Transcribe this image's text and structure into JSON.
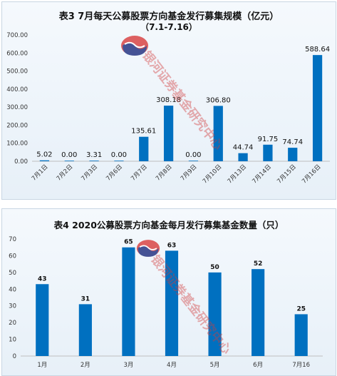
{
  "chart_data": [
    {
      "type": "bar",
      "title": "表3  7月每天公募股票方向基金发行募集规模（亿元）",
      "subtitle": "（7.1-7.16）",
      "categories": [
        "7月1日",
        "7月2日",
        "7月3日",
        "7月6日",
        "7月7日",
        "7月8日",
        "7月9日",
        "7月10日",
        "7月13日",
        "7月14日",
        "7月15日",
        "7月16日"
      ],
      "values": [
        5.02,
        0.0,
        3.31,
        0.0,
        135.61,
        308.18,
        0.0,
        306.8,
        44.74,
        91.75,
        74.74,
        588.64
      ],
      "value_labels": [
        "5.02",
        "0.00",
        "3.31",
        "0.00",
        "135.61",
        "308.18",
        "0.00",
        "306.80",
        "44.74",
        "91.75",
        "74.74",
        "588.64"
      ],
      "ylim": [
        0,
        700
      ],
      "y_ticks": [
        "0.00",
        "100.00",
        "200.00",
        "300.00",
        "400.00",
        "500.00",
        "600.00",
        "700.00"
      ],
      "y_tick_values": [
        0,
        100,
        200,
        300,
        400,
        500,
        600,
        700
      ],
      "grid": false,
      "legend": "none",
      "bar_color": "#0070c0"
    },
    {
      "type": "bar",
      "title": "表4  2020公募股票方向基金每月发行募集基金数量（只）",
      "categories": [
        "1月",
        "2月",
        "3月",
        "4月",
        "5月",
        "6月",
        "7月16"
      ],
      "values": [
        43,
        31,
        65,
        63,
        50,
        52,
        25
      ],
      "value_labels": [
        "43",
        "31",
        "65",
        "63",
        "50",
        "52",
        "25"
      ],
      "ylim": [
        0,
        70
      ],
      "y_ticks": [
        "0",
        "10",
        "20",
        "30",
        "40",
        "50",
        "60",
        "70"
      ],
      "y_tick_values": [
        0,
        10,
        20,
        30,
        40,
        50,
        60,
        70
      ],
      "grid": false,
      "legend": "none",
      "bar_color": "#0070c0"
    }
  ],
  "watermark": {
    "text": "银河证券基金研究中心",
    "logo_icon": "galaxy-logo-icon",
    "colors": {
      "red": "#d62e2e",
      "blue": "#1f4fa3"
    }
  }
}
